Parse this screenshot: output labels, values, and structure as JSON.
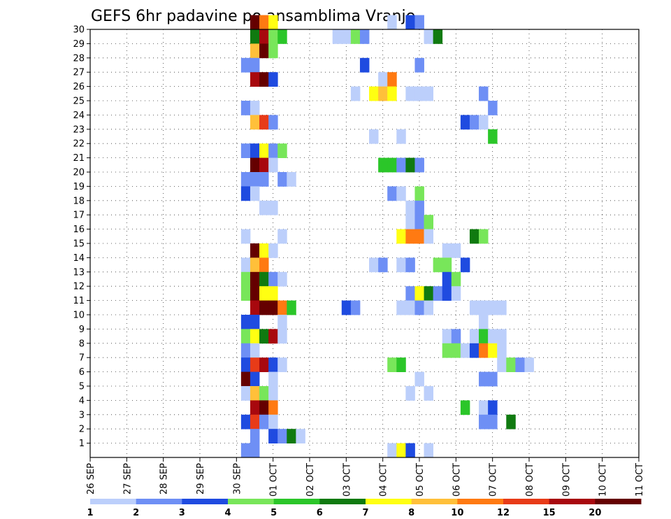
{
  "chart_data": {
    "type": "heatmap",
    "title": "GEFS 6hr padavine po ansamblima Vranje",
    "y_ticks": [
      "1",
      "2",
      "3",
      "4",
      "5",
      "6",
      "7",
      "8",
      "9",
      "10",
      "11",
      "12",
      "13",
      "14",
      "15",
      "16",
      "17",
      "18",
      "19",
      "20",
      "21",
      "22",
      "23",
      "24",
      "25",
      "26",
      "27",
      "28",
      "29",
      "30"
    ],
    "x_ticks": [
      "26 SEP",
      "27 SEP",
      "28 SEP",
      "29 SEP",
      "30 SEP",
      "01 OCT",
      "02 OCT",
      "03 OCT",
      "04 OCT",
      "05 OCT",
      "06 OCT",
      "07 OCT",
      "08 OCT",
      "09 OCT",
      "10 OCT",
      "11 OCT"
    ],
    "grid": true,
    "colorbar": {
      "labels": [
        "1",
        "2",
        "3",
        "4",
        "5",
        "6",
        "7",
        "8",
        "10",
        "12",
        "15",
        "20"
      ],
      "colors": [
        "#bccffb",
        "#6e8ff5",
        "#1f4be0",
        "#78e65a",
        "#2bc629",
        "#107a10",
        "#ffff12",
        "#ffc03a",
        "#ff7a12",
        "#e83b18",
        "#a8080e",
        "#650000"
      ]
    },
    "cells": [
      [
        30,
        4.5,
        11
      ],
      [
        30,
        4.75,
        8
      ],
      [
        30,
        5,
        6
      ],
      [
        30,
        8.25,
        0
      ],
      [
        30,
        8.75,
        2
      ],
      [
        30,
        9,
        1
      ],
      [
        29,
        4.5,
        5
      ],
      [
        29,
        4.75,
        10
      ],
      [
        29,
        5,
        3
      ],
      [
        29,
        5.25,
        4
      ],
      [
        29,
        6.75,
        0
      ],
      [
        29,
        7,
        0
      ],
      [
        29,
        7.25,
        3
      ],
      [
        29,
        7.5,
        1
      ],
      [
        29,
        9.25,
        0
      ],
      [
        29,
        9.5,
        5
      ],
      [
        28,
        4.5,
        7
      ],
      [
        28,
        4.75,
        11
      ],
      [
        28,
        5,
        3
      ],
      [
        27,
        4.25,
        1
      ],
      [
        27,
        4.5,
        1
      ],
      [
        27,
        7.5,
        2
      ],
      [
        27,
        9,
        1
      ],
      [
        26,
        4.5,
        10
      ],
      [
        26,
        4.75,
        11
      ],
      [
        26,
        5,
        2
      ],
      [
        26,
        8,
        0
      ],
      [
        26,
        8.25,
        8
      ],
      [
        25,
        7.25,
        0
      ],
      [
        25,
        7.75,
        6
      ],
      [
        25,
        8,
        7
      ],
      [
        25,
        8.25,
        6
      ],
      [
        25,
        8.75,
        0
      ],
      [
        25,
        9,
        0
      ],
      [
        25,
        9.25,
        0
      ],
      [
        25,
        10.75,
        1
      ],
      [
        24,
        4.25,
        1
      ],
      [
        24,
        4.5,
        0
      ],
      [
        24,
        11,
        1
      ],
      [
        23,
        4.5,
        7
      ],
      [
        23,
        4.75,
        9
      ],
      [
        23,
        5,
        1
      ],
      [
        23,
        10.25,
        2
      ],
      [
        23,
        10.5,
        1
      ],
      [
        23,
        10.75,
        0
      ],
      [
        22,
        7.75,
        0
      ],
      [
        22,
        8.5,
        0
      ],
      [
        22,
        11,
        4
      ],
      [
        21,
        4.25,
        1
      ],
      [
        21,
        4.5,
        2
      ],
      [
        21,
        4.75,
        6
      ],
      [
        21,
        5,
        1
      ],
      [
        21,
        5.25,
        3
      ],
      [
        20,
        4.5,
        11
      ],
      [
        20,
        4.75,
        10
      ],
      [
        20,
        5,
        0
      ],
      [
        20,
        8,
        4
      ],
      [
        20,
        8.25,
        4
      ],
      [
        20,
        8.5,
        1
      ],
      [
        20,
        8.75,
        5
      ],
      [
        20,
        9,
        1
      ],
      [
        19,
        4.25,
        1
      ],
      [
        19,
        4.5,
        1
      ],
      [
        19,
        4.75,
        1
      ],
      [
        19,
        5.25,
        1
      ],
      [
        19,
        5.5,
        0
      ],
      [
        18,
        4.25,
        2
      ],
      [
        18,
        4.5,
        0
      ],
      [
        18,
        8.25,
        1
      ],
      [
        18,
        8.5,
        0
      ],
      [
        18,
        9,
        3
      ],
      [
        17,
        4.75,
        0
      ],
      [
        17,
        5,
        0
      ],
      [
        17,
        8.75,
        0
      ],
      [
        17,
        9,
        1
      ],
      [
        16,
        8.75,
        0
      ],
      [
        16,
        9,
        1
      ],
      [
        16,
        9.25,
        3
      ],
      [
        15,
        4.25,
        0
      ],
      [
        15,
        5.25,
        0
      ],
      [
        15,
        8.5,
        6
      ],
      [
        15,
        8.75,
        8
      ],
      [
        15,
        9,
        8
      ],
      [
        15,
        9.25,
        0
      ],
      [
        15,
        10.5,
        5
      ],
      [
        15,
        10.75,
        3
      ],
      [
        14,
        4.5,
        11
      ],
      [
        14,
        4.75,
        6
      ],
      [
        14,
        5,
        0
      ],
      [
        14,
        9.75,
        0
      ],
      [
        14,
        10,
        0
      ],
      [
        13,
        4.25,
        0
      ],
      [
        13,
        4.5,
        7
      ],
      [
        13,
        4.75,
        8
      ],
      [
        13,
        7.75,
        0
      ],
      [
        13,
        8,
        1
      ],
      [
        13,
        8.5,
        0
      ],
      [
        13,
        8.75,
        1
      ],
      [
        13,
        9.5,
        3
      ],
      [
        13,
        9.75,
        3
      ],
      [
        13,
        10.25,
        2
      ],
      [
        12,
        4.25,
        3
      ],
      [
        12,
        4.5,
        11
      ],
      [
        12,
        4.75,
        5
      ],
      [
        12,
        5,
        1
      ],
      [
        12,
        5.25,
        0
      ],
      [
        12,
        9.75,
        2
      ],
      [
        12,
        10,
        3
      ],
      [
        11,
        4.25,
        3
      ],
      [
        11,
        4.5,
        11
      ],
      [
        11,
        4.75,
        6
      ],
      [
        11,
        5,
        6
      ],
      [
        11,
        8.75,
        1
      ],
      [
        11,
        9,
        6
      ],
      [
        11,
        9.25,
        5
      ],
      [
        11,
        9.5,
        1
      ],
      [
        11,
        9.75,
        2
      ],
      [
        11,
        10,
        0
      ],
      [
        10,
        4.5,
        10
      ],
      [
        10,
        4.75,
        11
      ],
      [
        10,
        5,
        11
      ],
      [
        10,
        5.25,
        8
      ],
      [
        10,
        5.5,
        4
      ],
      [
        10,
        7,
        2
      ],
      [
        10,
        7.25,
        1
      ],
      [
        10,
        8.5,
        0
      ],
      [
        10,
        8.75,
        0
      ],
      [
        10,
        9,
        1
      ],
      [
        10,
        9.25,
        0
      ],
      [
        10,
        10.5,
        0
      ],
      [
        10,
        10.75,
        0
      ],
      [
        10,
        11,
        0
      ],
      [
        10,
        11.25,
        0
      ],
      [
        9,
        4.25,
        2
      ],
      [
        9,
        4.5,
        2
      ],
      [
        9,
        5.25,
        0
      ],
      [
        9,
        10.75,
        0
      ],
      [
        8,
        4.25,
        3
      ],
      [
        8,
        4.5,
        6
      ],
      [
        8,
        4.75,
        5
      ],
      [
        8,
        5,
        10
      ],
      [
        8,
        5.25,
        0
      ],
      [
        8,
        9.75,
        0
      ],
      [
        8,
        10,
        1
      ],
      [
        8,
        10.5,
        0
      ],
      [
        8,
        10.75,
        4
      ],
      [
        8,
        11,
        0
      ],
      [
        8,
        11.25,
        0
      ],
      [
        7,
        4.25,
        1
      ],
      [
        7,
        4.5,
        0
      ],
      [
        7,
        9.75,
        3
      ],
      [
        7,
        10,
        3
      ],
      [
        7,
        10.25,
        0
      ],
      [
        7,
        10.5,
        2
      ],
      [
        7,
        10.75,
        8
      ],
      [
        7,
        11,
        6
      ],
      [
        7,
        11.25,
        0
      ],
      [
        6,
        4.25,
        2
      ],
      [
        6,
        4.5,
        9
      ],
      [
        6,
        4.75,
        10
      ],
      [
        6,
        5,
        2
      ],
      [
        6,
        5.25,
        0
      ],
      [
        6,
        8.25,
        3
      ],
      [
        6,
        8.5,
        4
      ],
      [
        6,
        11.25,
        0
      ],
      [
        6,
        11.5,
        3
      ],
      [
        6,
        11.75,
        1
      ],
      [
        6,
        12,
        0
      ],
      [
        5,
        4.25,
        11
      ],
      [
        5,
        4.5,
        2
      ],
      [
        5,
        5,
        0
      ],
      [
        5,
        9,
        0
      ],
      [
        5,
        10.75,
        1
      ],
      [
        5,
        11,
        1
      ],
      [
        4,
        4.25,
        0
      ],
      [
        4,
        4.5,
        7
      ],
      [
        4,
        4.75,
        3
      ],
      [
        4,
        5,
        0
      ],
      [
        4,
        8.75,
        0
      ],
      [
        4,
        9.25,
        0
      ],
      [
        3,
        4.5,
        10
      ],
      [
        3,
        4.75,
        11
      ],
      [
        3,
        5,
        8
      ],
      [
        3,
        10.25,
        4
      ],
      [
        3,
        10.75,
        0
      ],
      [
        3,
        11,
        2
      ],
      [
        2,
        4.25,
        2
      ],
      [
        2,
        4.5,
        9
      ],
      [
        2,
        4.75,
        1
      ],
      [
        2,
        5,
        0
      ],
      [
        2,
        10.75,
        1
      ],
      [
        2,
        11,
        1
      ],
      [
        2,
        11.5,
        5
      ],
      [
        1,
        4.5,
        1
      ],
      [
        1,
        5,
        2
      ],
      [
        1,
        5.25,
        1
      ],
      [
        1,
        5.5,
        5
      ],
      [
        1,
        5.75,
        0
      ],
      [
        0,
        4.25,
        1
      ],
      [
        0,
        4.5,
        1
      ],
      [
        0,
        8.25,
        0
      ],
      [
        0,
        8.5,
        6
      ],
      [
        0,
        8.75,
        2
      ],
      [
        0,
        9.25,
        0
      ]
    ]
  }
}
